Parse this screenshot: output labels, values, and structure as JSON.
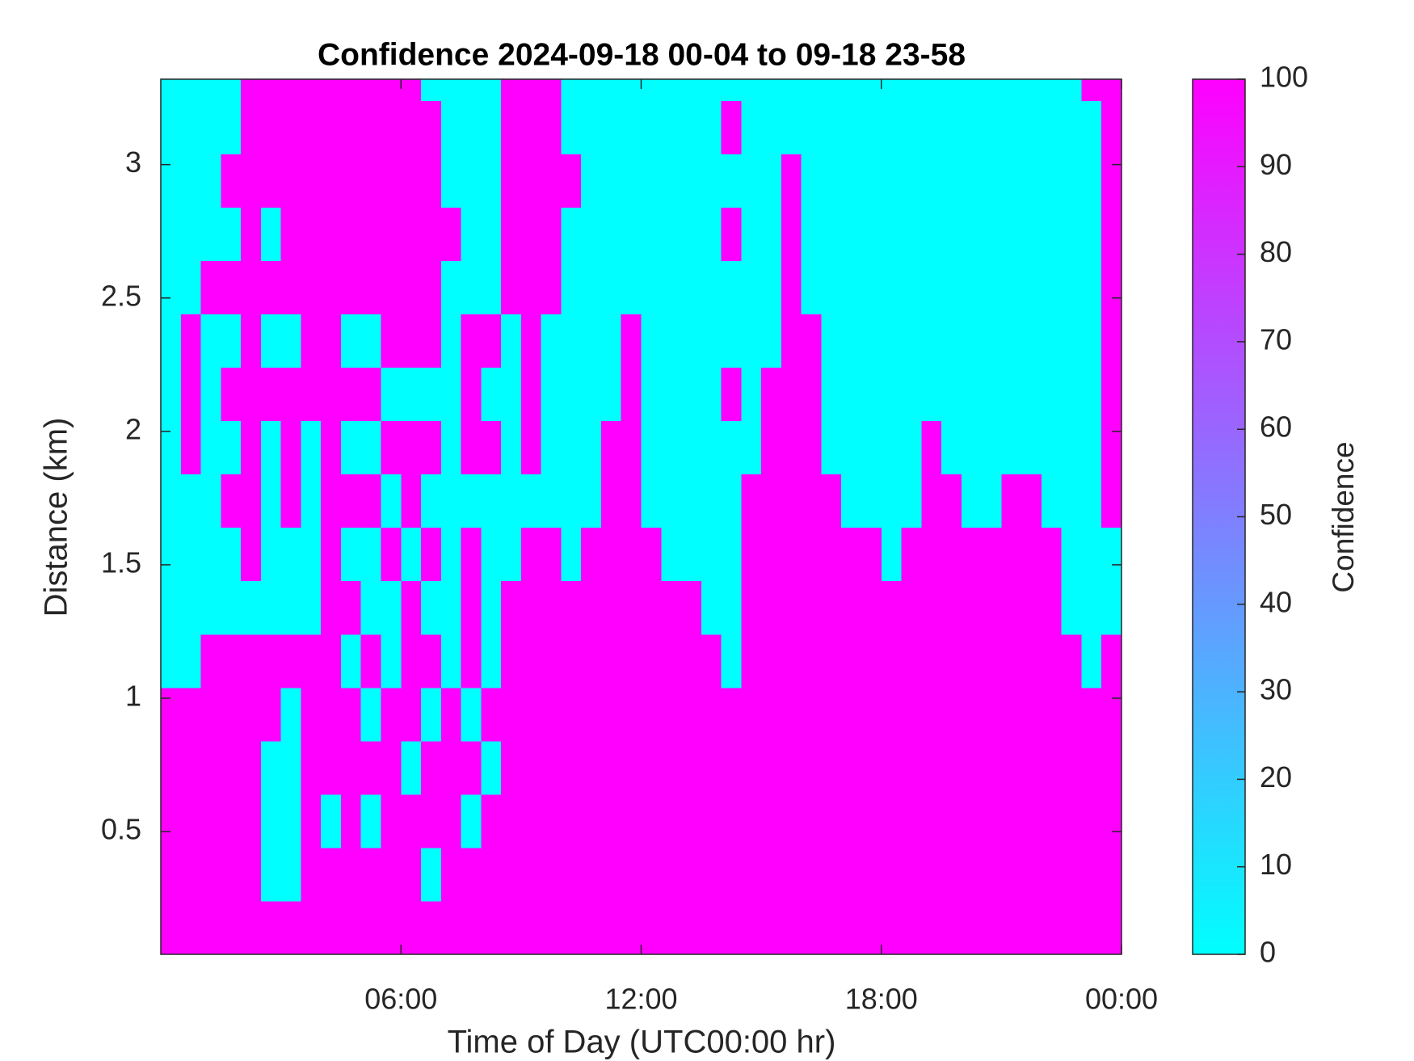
{
  "chart_data": {
    "type": "heatmap",
    "title": "Confidence 2024-09-18 00-04 to 09-18 23-58",
    "xlabel": "Time of Day (UTC00:00 hr)",
    "ylabel": "Distance (km)",
    "colorbar_label": "Confidence",
    "colormap": "cool",
    "xlim": [
      0,
      24
    ],
    "xticks": [
      {
        "value": 6,
        "label": "06:00"
      },
      {
        "value": 12,
        "label": "12:00"
      },
      {
        "value": 18,
        "label": "18:00"
      },
      {
        "value": 24,
        "label": "00:00"
      }
    ],
    "ylim": [
      0.04,
      3.32
    ],
    "yticks": [
      0.5,
      1,
      1.5,
      2,
      2.5,
      3
    ],
    "clim": [
      0,
      100
    ],
    "cticks": [
      0,
      10,
      20,
      30,
      40,
      50,
      60,
      70,
      80,
      90,
      100
    ],
    "x": [
      0.25,
      0.75,
      1.25,
      1.75,
      2.25,
      2.75,
      3.25,
      3.75,
      4.25,
      4.75,
      5.25,
      5.75,
      6.25,
      6.75,
      7.25,
      7.75,
      8.25,
      8.75,
      9.25,
      9.75,
      10.25,
      10.75,
      11.25,
      11.75,
      12.25,
      12.75,
      13.25,
      13.75,
      14.25,
      14.75,
      15.25,
      15.75,
      16.25,
      16.75,
      17.25,
      17.75,
      18.25,
      18.75,
      19.25,
      19.75,
      20.25,
      20.75,
      21.25,
      21.75,
      22.25,
      22.75,
      23.25,
      23.75
    ],
    "y": [
      0.14,
      0.34,
      0.54,
      0.74,
      0.94,
      1.14,
      1.34,
      1.54,
      1.74,
      1.94,
      2.14,
      2.34,
      2.54,
      2.74,
      2.94,
      3.14,
      3.34
    ],
    "z": [
      [
        100,
        100,
        100,
        100,
        100,
        100,
        100,
        100,
        100,
        100,
        100,
        100,
        100,
        100,
        100,
        100,
        100,
        100,
        100,
        100,
        100,
        100,
        100,
        100,
        100,
        100,
        100,
        100,
        100,
        100,
        100,
        100,
        100,
        100,
        100,
        100,
        100,
        100,
        100,
        100,
        100,
        100,
        100,
        100,
        100,
        100,
        100,
        100
      ],
      [
        100,
        100,
        100,
        100,
        100,
        0,
        0,
        100,
        100,
        100,
        100,
        100,
        100,
        0,
        100,
        100,
        100,
        100,
        100,
        100,
        100,
        100,
        100,
        100,
        100,
        100,
        100,
        100,
        100,
        100,
        100,
        100,
        100,
        100,
        100,
        100,
        100,
        100,
        100,
        100,
        100,
        100,
        100,
        100,
        100,
        100,
        100,
        100
      ],
      [
        100,
        100,
        100,
        100,
        100,
        0,
        0,
        100,
        0,
        100,
        0,
        100,
        100,
        100,
        100,
        0,
        100,
        100,
        100,
        100,
        100,
        100,
        100,
        100,
        100,
        100,
        100,
        100,
        100,
        100,
        100,
        100,
        100,
        100,
        100,
        100,
        100,
        100,
        100,
        100,
        100,
        100,
        100,
        100,
        100,
        100,
        100,
        100
      ],
      [
        100,
        100,
        100,
        100,
        100,
        0,
        0,
        100,
        100,
        100,
        100,
        100,
        0,
        100,
        100,
        100,
        0,
        100,
        100,
        100,
        100,
        100,
        100,
        100,
        100,
        100,
        100,
        100,
        100,
        100,
        100,
        100,
        100,
        100,
        100,
        100,
        100,
        100,
        100,
        100,
        100,
        100,
        100,
        100,
        100,
        100,
        100,
        100
      ],
      [
        100,
        100,
        100,
        100,
        100,
        100,
        0,
        100,
        100,
        100,
        0,
        100,
        100,
        0,
        100,
        0,
        100,
        100,
        100,
        100,
        100,
        100,
        100,
        100,
        100,
        100,
        100,
        100,
        100,
        100,
        100,
        100,
        100,
        100,
        100,
        100,
        100,
        100,
        100,
        100,
        100,
        100,
        100,
        100,
        100,
        100,
        100,
        100
      ],
      [
        0,
        0,
        100,
        100,
        100,
        100,
        100,
        100,
        100,
        0,
        100,
        0,
        100,
        100,
        0,
        100,
        0,
        100,
        100,
        100,
        100,
        100,
        100,
        100,
        100,
        100,
        100,
        100,
        0,
        100,
        100,
        100,
        100,
        100,
        100,
        100,
        100,
        100,
        100,
        100,
        100,
        100,
        100,
        100,
        100,
        100,
        0,
        100
      ],
      [
        0,
        0,
        0,
        0,
        0,
        0,
        0,
        0,
        100,
        100,
        0,
        0,
        100,
        0,
        0,
        100,
        0,
        100,
        100,
        100,
        100,
        100,
        100,
        100,
        100,
        100,
        100,
        0,
        0,
        100,
        100,
        100,
        100,
        100,
        100,
        100,
        100,
        100,
        100,
        100,
        100,
        100,
        100,
        100,
        100,
        0,
        0,
        0
      ],
      [
        0,
        0,
        0,
        0,
        100,
        0,
        0,
        0,
        100,
        0,
        0,
        100,
        0,
        100,
        0,
        100,
        0,
        0,
        100,
        100,
        0,
        100,
        100,
        100,
        100,
        0,
        0,
        0,
        0,
        100,
        100,
        100,
        100,
        100,
        100,
        100,
        0,
        100,
        100,
        100,
        100,
        100,
        100,
        100,
        100,
        0,
        0,
        0
      ],
      [
        0,
        0,
        0,
        100,
        100,
        0,
        100,
        0,
        100,
        100,
        100,
        0,
        100,
        0,
        0,
        0,
        0,
        0,
        0,
        0,
        0,
        0,
        100,
        100,
        0,
        0,
        0,
        0,
        0,
        100,
        100,
        100,
        100,
        100,
        0,
        0,
        0,
        0,
        100,
        100,
        0,
        0,
        100,
        100,
        0,
        0,
        0,
        100
      ],
      [
        0,
        100,
        0,
        0,
        100,
        0,
        100,
        0,
        100,
        0,
        0,
        100,
        100,
        100,
        0,
        100,
        100,
        0,
        100,
        0,
        0,
        0,
        100,
        100,
        0,
        0,
        0,
        0,
        0,
        0,
        100,
        100,
        100,
        0,
        0,
        0,
        0,
        0,
        100,
        0,
        0,
        0,
        0,
        0,
        0,
        0,
        0,
        100
      ],
      [
        0,
        100,
        0,
        100,
        100,
        100,
        100,
        100,
        100,
        100,
        100,
        0,
        0,
        0,
        0,
        100,
        0,
        0,
        100,
        0,
        0,
        0,
        0,
        100,
        0,
        0,
        0,
        0,
        100,
        0,
        100,
        100,
        100,
        0,
        0,
        0,
        0,
        0,
        0,
        0,
        0,
        0,
        0,
        0,
        0,
        0,
        0,
        100
      ],
      [
        0,
        100,
        0,
        0,
        100,
        0,
        0,
        100,
        100,
        0,
        0,
        100,
        100,
        100,
        0,
        100,
        100,
        0,
        100,
        0,
        0,
        0,
        0,
        100,
        0,
        0,
        0,
        0,
        0,
        0,
        0,
        100,
        100,
        0,
        0,
        0,
        0,
        0,
        0,
        0,
        0,
        0,
        0,
        0,
        0,
        0,
        0,
        100
      ],
      [
        0,
        0,
        100,
        100,
        100,
        100,
        100,
        100,
        100,
        100,
        100,
        100,
        100,
        100,
        0,
        0,
        0,
        100,
        100,
        100,
        0,
        0,
        0,
        0,
        0,
        0,
        0,
        0,
        0,
        0,
        0,
        100,
        0,
        0,
        0,
        0,
        0,
        0,
        0,
        0,
        0,
        0,
        0,
        0,
        0,
        0,
        0,
        100
      ],
      [
        0,
        0,
        0,
        0,
        100,
        0,
        100,
        100,
        100,
        100,
        100,
        100,
        100,
        100,
        100,
        0,
        0,
        100,
        100,
        100,
        0,
        0,
        0,
        0,
        0,
        0,
        0,
        0,
        100,
        0,
        0,
        100,
        0,
        0,
        0,
        0,
        0,
        0,
        0,
        0,
        0,
        0,
        0,
        0,
        0,
        0,
        0,
        100
      ],
      [
        0,
        0,
        0,
        100,
        100,
        100,
        100,
        100,
        100,
        100,
        100,
        100,
        100,
        100,
        0,
        0,
        0,
        100,
        100,
        100,
        100,
        0,
        0,
        0,
        0,
        0,
        0,
        0,
        0,
        0,
        0,
        100,
        0,
        0,
        0,
        0,
        0,
        0,
        0,
        0,
        0,
        0,
        0,
        0,
        0,
        0,
        0,
        100
      ],
      [
        0,
        0,
        0,
        0,
        100,
        100,
        100,
        100,
        100,
        100,
        100,
        100,
        100,
        100,
        0,
        0,
        0,
        100,
        100,
        100,
        0,
        0,
        0,
        0,
        0,
        0,
        0,
        0,
        100,
        0,
        0,
        0,
        0,
        0,
        0,
        0,
        0,
        0,
        0,
        0,
        0,
        0,
        0,
        0,
        0,
        0,
        0,
        100
      ],
      [
        0,
        0,
        0,
        0,
        100,
        100,
        100,
        100,
        100,
        100,
        100,
        100,
        100,
        0,
        0,
        0,
        0,
        100,
        100,
        100,
        0,
        0,
        0,
        0,
        0,
        0,
        0,
        0,
        0,
        0,
        0,
        0,
        0,
        0,
        0,
        0,
        0,
        0,
        0,
        0,
        0,
        0,
        0,
        0,
        0,
        0,
        100,
        100
      ]
    ]
  }
}
